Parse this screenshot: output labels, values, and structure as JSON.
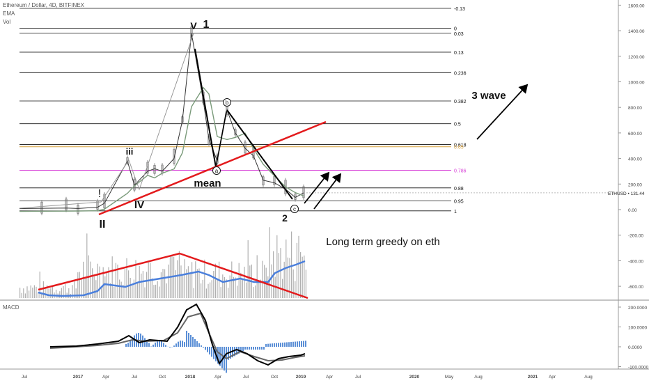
{
  "chart_data": {
    "type": "line",
    "symbol_label": "Ethereum / Dollar, 4D, BITFINEX",
    "indicators": [
      "EMA",
      "Vol"
    ],
    "macd_label": "MACD",
    "price_axis": {
      "ticks": [
        "1600.00",
        "1400.00",
        "1200.00",
        "1000.00",
        "800.00",
        "600.00",
        "400.00",
        "200.00",
        "0.00",
        "-200.00",
        "-400.00",
        "-600.00"
      ],
      "ylim": [
        -650,
        1620
      ]
    },
    "macd_axis": {
      "ticks": [
        "200.0000",
        "100.0000",
        "0.0000",
        "-100.0000"
      ],
      "ylim": [
        -115,
        215
      ]
    },
    "x_ticks": [
      "Jul",
      "2017",
      "Apr",
      "Jul",
      "Oct",
      "2018",
      "Apr",
      "Jul",
      "Oct",
      "2019",
      "Apr",
      "Jul",
      "2020",
      "May",
      "Aug",
      "2021",
      "Apr",
      "Aug"
    ],
    "last_price": {
      "label": "ETHUSD • 131.44",
      "value": 131.44
    },
    "fib_levels": [
      {
        "label": "-0.13",
        "price": 1620
      },
      {
        "label": "0",
        "price": 1420
      },
      {
        "label": "0.03",
        "price": 1380
      },
      {
        "label": "0.13",
        "price": 1232
      },
      {
        "label": "0.236",
        "price": 1072
      },
      {
        "label": "0.382",
        "price": 850
      },
      {
        "label": "0.5",
        "price": 672
      },
      {
        "label": "0.618",
        "price": 510
      },
      {
        "label": "0.65",
        "price": 492,
        "color": "#d9a13b"
      },
      {
        "label": "0.786",
        "price": 308,
        "color": "#d63dd6"
      },
      {
        "label": "0.88",
        "price": 170
      },
      {
        "label": "0.95",
        "price": 68
      },
      {
        "label": "1",
        "price": -10
      }
    ],
    "price_series": {
      "name": "ETHUSD",
      "dates": [
        "2016-04",
        "2016-07",
        "2016-10",
        "2017-01",
        "2017-03",
        "2017-04",
        "2017-06",
        "2017-07",
        "2017-08",
        "2017-09",
        "2017-10",
        "2017-11",
        "2017-12",
        "2018-01",
        "2018-02",
        "2018-03",
        "2018-04",
        "2018-05",
        "2018-06",
        "2018-07",
        "2018-08",
        "2018-09",
        "2018-10",
        "2018-11",
        "2018-12",
        "2019-01"
      ],
      "values": [
        8,
        10,
        12,
        9,
        18,
        50,
        380,
        190,
        300,
        320,
        300,
        400,
        700,
        1380,
        850,
        550,
        380,
        780,
        600,
        480,
        420,
        230,
        210,
        160,
        95,
        131
      ]
    },
    "annotations": {
      "wave_labels": [
        "!",
        "II",
        "iii",
        "IV",
        "V",
        "1",
        "2"
      ],
      "circled": [
        "a",
        "b",
        "c"
      ],
      "mean": "mean",
      "three_wave": "3 wave",
      "note": "Long term greedy on eth"
    },
    "colors": {
      "price": "#333333",
      "ema": "#7a9a7a",
      "volume_bar": "#b0b0b0",
      "volume_ma": "#4a7fdc",
      "trendline": "#e31a1c",
      "macd": "#000000",
      "signal": "#666666",
      "histogram": "#5b8fd6"
    }
  }
}
